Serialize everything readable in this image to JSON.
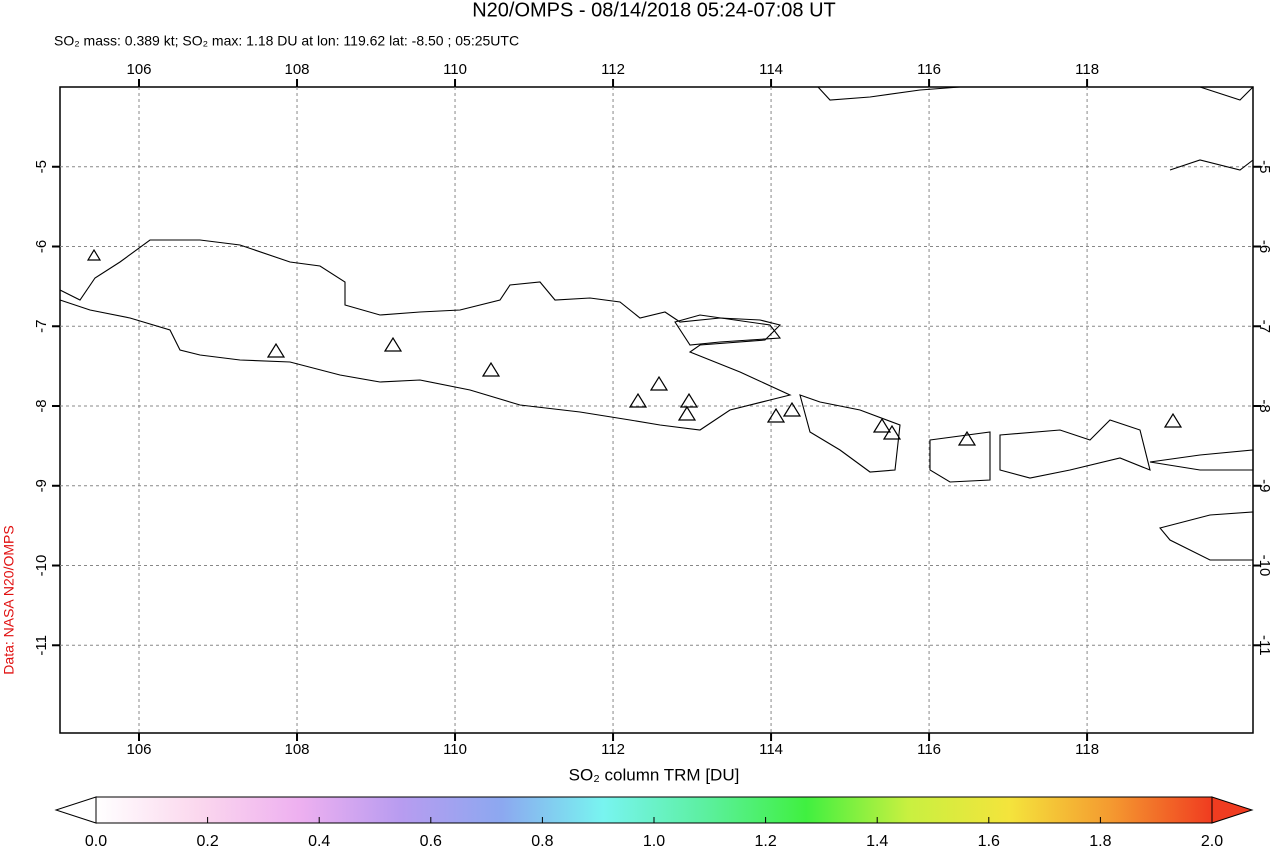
{
  "header": {
    "title": "N20/OMPS - 08/14/2018 05:24-07:08 UT",
    "subtitle": "SO₂ mass: 0.389 kt; SO₂ max: 1.18 DU at lon: 119.62 lat: -8.50 ; 05:25UTC"
  },
  "map": {
    "xlim": [
      105,
      120.1
    ],
    "ylim": [
      -12.1,
      -4
    ],
    "xticks": [
      106,
      108,
      110,
      112,
      114,
      116,
      118
    ],
    "yticks": [
      -5,
      -6,
      -7,
      -8,
      -9,
      -10,
      -11
    ],
    "grid": true
  },
  "colorbar": {
    "label": "SO₂ column TRM [DU]",
    "lim": [
      0,
      2
    ],
    "ticks": [
      {
        "value": 0,
        "label": "0.0"
      },
      0.2,
      0.4,
      0.6,
      0.8,
      {
        "value": 1,
        "label": "1.0"
      },
      1.2,
      1.4,
      1.6,
      1.8,
      {
        "value": 2,
        "label": "2.0"
      }
    ],
    "colors": [
      "#ffffff",
      "#fbd8ee",
      "#eeb0f0",
      "#b89cf0",
      "#8ca8f0",
      "#78f4f0",
      "#5cf0a0",
      "#40f040",
      "#c8f040",
      "#f4e43c",
      "#f49a30",
      "#f03c20"
    ]
  },
  "credit": "Data: NASA N20/OMPS"
}
